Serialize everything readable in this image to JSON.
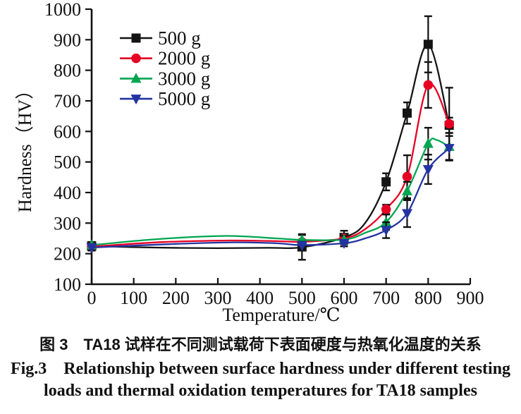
{
  "figure": {
    "caption_zh": "图 3　TA18 试样在不同测试载荷下表面硬度与热氧化温度的关系",
    "caption_en_line1": "Fig.3    Relationship between surface hardness under different testing",
    "caption_en_line2": "loads and thermal oxidation temperatures for TA18 samples"
  },
  "chart_data": {
    "type": "line",
    "title": "",
    "xlabel": "Temperature/℃",
    "ylabel": "Hardness（HV）",
    "xlim": [
      0,
      900
    ],
    "ylim": [
      100,
      1000
    ],
    "x_ticks": [
      0,
      100,
      200,
      300,
      400,
      500,
      600,
      700,
      800,
      900
    ],
    "y_ticks": [
      100,
      200,
      300,
      400,
      500,
      600,
      700,
      800,
      900,
      1000
    ],
    "grid": false,
    "legend_position": "inside-top-left",
    "axis_color": "#111111",
    "error_bar_color": "#111111",
    "series": [
      {
        "name": "500 g",
        "color": "#141414",
        "marker": "square",
        "x": [
          0,
          500,
          600,
          700,
          750,
          800,
          850
        ],
        "y": [
          225,
          222,
          253,
          435,
          660,
          885,
          620
        ],
        "yerr": [
          10,
          42,
          22,
          28,
          35,
          92,
          25
        ],
        "curve": [
          [
            0,
            225
          ],
          [
            150,
            220
          ],
          [
            300,
            218
          ],
          [
            420,
            219
          ],
          [
            500,
            221
          ],
          [
            600,
            253
          ],
          [
            650,
            300
          ],
          [
            700,
            435
          ],
          [
            750,
            660
          ],
          [
            800,
            885
          ],
          [
            850,
            620
          ]
        ]
      },
      {
        "name": "2000 g",
        "color": "#e60023",
        "marker": "circle",
        "x": [
          0,
          500,
          600,
          700,
          750,
          800,
          850
        ],
        "y": [
          223,
          238,
          250,
          345,
          452,
          752,
          625
        ],
        "yerr": [
          10,
          0,
          12,
          15,
          70,
          75,
          118
        ],
        "curve": [
          [
            0,
            223
          ],
          [
            170,
            238
          ],
          [
            330,
            243
          ],
          [
            440,
            241
          ],
          [
            500,
            239
          ],
          [
            600,
            250
          ],
          [
            650,
            280
          ],
          [
            700,
            345
          ],
          [
            750,
            452
          ],
          [
            800,
            752
          ],
          [
            850,
            625
          ]
        ]
      },
      {
        "name": "3000 g",
        "color": "#00a550",
        "marker": "triangle-up",
        "x": [
          0,
          500,
          600,
          700,
          750,
          800,
          850
        ],
        "y": [
          228,
          245,
          246,
          303,
          405,
          560,
          550
        ],
        "yerr": [
          10,
          16,
          12,
          25,
          30,
          52,
          45
        ],
        "curve": [
          [
            0,
            228
          ],
          [
            160,
            248
          ],
          [
            320,
            258
          ],
          [
            440,
            250
          ],
          [
            500,
            245
          ],
          [
            600,
            246
          ],
          [
            650,
            268
          ],
          [
            700,
            303
          ],
          [
            750,
            405
          ],
          [
            800,
            560
          ],
          [
            820,
            572
          ],
          [
            850,
            550
          ]
        ]
      },
      {
        "name": "5000 g",
        "color": "#2433a3",
        "marker": "triangle-down",
        "x": [
          0,
          500,
          600,
          700,
          750,
          800,
          850
        ],
        "y": [
          220,
          227,
          234,
          277,
          332,
          476,
          545
        ],
        "yerr": [
          10,
          12,
          10,
          26,
          45,
          48,
          40
        ],
        "curve": [
          [
            0,
            220
          ],
          [
            200,
            232
          ],
          [
            340,
            237
          ],
          [
            440,
            234
          ],
          [
            500,
            228
          ],
          [
            600,
            234
          ],
          [
            650,
            250
          ],
          [
            700,
            277
          ],
          [
            750,
            332
          ],
          [
            800,
            476
          ],
          [
            850,
            545
          ]
        ]
      }
    ]
  }
}
